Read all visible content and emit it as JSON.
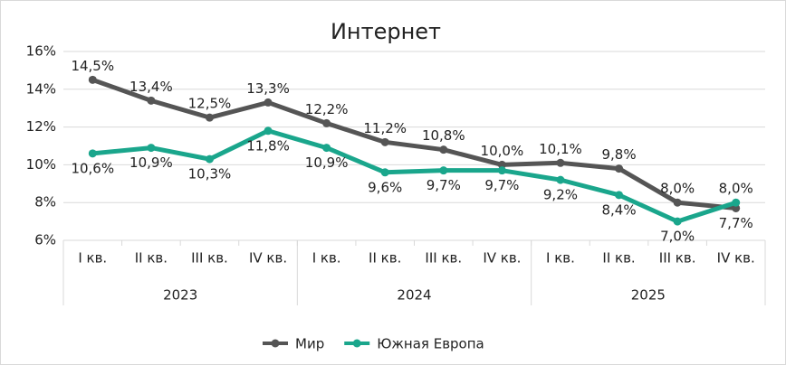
{
  "chart_data": {
    "type": "line",
    "title": "Интернет",
    "categories": [
      "I кв.",
      "II кв.",
      "III кв.",
      "IV кв.",
      "I кв.",
      "II кв.",
      "III кв.",
      "IV кв.",
      "I кв.",
      "II кв.",
      "III кв.",
      "IV кв."
    ],
    "x_groups": [
      "2023",
      "2024",
      "2025"
    ],
    "series": [
      {
        "name": "Мир",
        "color": "#555555",
        "values": [
          14.5,
          13.4,
          12.5,
          13.3,
          12.2,
          11.2,
          10.8,
          10.0,
          10.1,
          9.8,
          8.0,
          7.7
        ],
        "value_labels": [
          "14,5%",
          "13,4%",
          "12,5%",
          "13,3%",
          "12,2%",
          "11,2%",
          "10,8%",
          "10,0%",
          "10,1%",
          "9,8%",
          "8,0%",
          "7,7%"
        ]
      },
      {
        "name": "Южная Европа",
        "color": "#1aa68c",
        "values": [
          10.6,
          10.9,
          10.3,
          11.8,
          10.9,
          9.6,
          9.7,
          9.7,
          9.2,
          8.4,
          7.0,
          8.0
        ],
        "value_labels": [
          "10,6%",
          "10,9%",
          "10,3%",
          "11,8%",
          "10,9%",
          "9,6%",
          "9,7%",
          "9,7%",
          "9,2%",
          "8,4%",
          "7,0%",
          "8,0%"
        ]
      }
    ],
    "ylim": [
      6,
      16
    ],
    "yticks": [
      {
        "value": 6,
        "label": "6%"
      },
      {
        "value": 8,
        "label": "8%"
      },
      {
        "value": 10,
        "label": "10%"
      },
      {
        "value": 12,
        "label": "12%"
      },
      {
        "value": 14,
        "label": "14%"
      },
      {
        "value": 16,
        "label": "16%"
      }
    ],
    "grid": true,
    "legend": "bottom"
  }
}
